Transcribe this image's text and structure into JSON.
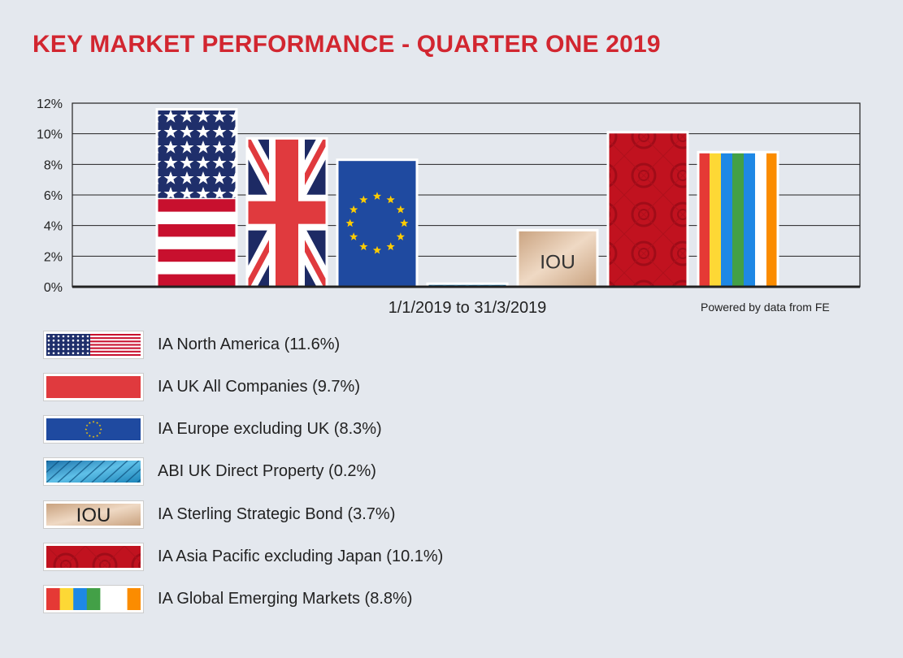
{
  "title": "KEY MARKET PERFORMANCE - QUARTER ONE 2019",
  "chart_data": {
    "type": "bar",
    "title": "KEY MARKET PERFORMANCE - QUARTER ONE 2019",
    "xlabel": "1/1/2019 to 31/3/2019",
    "ylabel": "",
    "ylim": [
      0,
      12
    ],
    "yticks": [
      "0%",
      "2%",
      "4%",
      "6%",
      "8%",
      "10%",
      "12%"
    ],
    "grid": true,
    "categories": [
      "IA North America",
      "IA UK All Companies",
      "IA Europe excluding UK",
      "ABI UK Direct Property",
      "IA Sterling Strategic Bond",
      "IA Asia Pacific excluding Japan",
      "IA Global Emerging Markets"
    ],
    "values": [
      11.6,
      9.7,
      8.3,
      0.2,
      3.7,
      10.1,
      8.8
    ],
    "fills": [
      "us-flag",
      "uk-flag",
      "eu-flag",
      "property-glass",
      "iou-note",
      "asia-pattern",
      "rainbow-stripes"
    ]
  },
  "iou_text": "IOU",
  "source": "Powered by data from FE",
  "legend": [
    {
      "label": "IA North America (11.6%)",
      "fill": "us-flag"
    },
    {
      "label": "IA UK All Companies (9.7%)",
      "fill": "uk-flag"
    },
    {
      "label": "IA Europe excluding UK (8.3%)",
      "fill": "eu-flag"
    },
    {
      "label": "ABI UK Direct Property (0.2%)",
      "fill": "property-glass"
    },
    {
      "label": "IA Sterling Strategic Bond (3.7%)",
      "fill": "iou-note"
    },
    {
      "label": "IA Asia Pacific excluding Japan (10.1%)",
      "fill": "asia-pattern"
    },
    {
      "label": "IA Global Emerging Markets (8.8%)",
      "fill": "rainbow-stripes"
    }
  ],
  "colors": {
    "title": "#d22630",
    "us_red": "#c8102e",
    "us_blue": "#1f2f6b",
    "uk_red": "#e03a3e",
    "uk_blue": "#1d2a64",
    "eu_blue": "#1f4aa0",
    "eu_star": "#ffcc00",
    "asia_red": "#c1121f",
    "iou_tan": "#d9b99b"
  }
}
